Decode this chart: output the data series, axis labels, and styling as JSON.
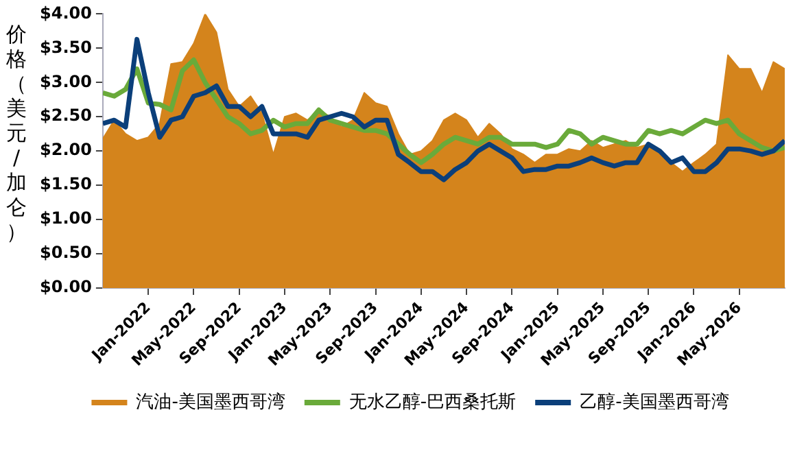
{
  "chart_data": {
    "type": "line",
    "ylabel": "价格（美元/加仑）",
    "x": [
      "2021-09",
      "2021-10",
      "2021-11",
      "2021-12",
      "2022-01",
      "2022-02",
      "2022-03",
      "2022-04",
      "2022-05",
      "2022-06",
      "2022-07",
      "2022-08",
      "2022-09",
      "2022-10",
      "2022-11",
      "2022-12",
      "2023-01",
      "2023-02",
      "2023-03",
      "2023-04",
      "2023-05",
      "2023-06",
      "2023-07",
      "2023-08",
      "2023-09",
      "2023-10",
      "2023-11",
      "2023-12",
      "2024-01",
      "2024-02",
      "2024-03",
      "2024-04",
      "2024-05",
      "2024-06",
      "2024-07",
      "2024-08",
      "2024-09",
      "2024-10",
      "2024-11",
      "2024-12",
      "2025-01",
      "2025-02",
      "2025-03",
      "2025-04",
      "2025-05",
      "2025-06",
      "2025-07",
      "2025-08",
      "2025-09",
      "2025-10",
      "2025-11",
      "2025-12",
      "2026-01",
      "2026-02",
      "2026-03",
      "2026-04",
      "2026-05",
      "2026-06",
      "2026-07",
      "2026-08",
      "2026-09"
    ],
    "series": [
      {
        "name": "汽油-美国墨西哥湾",
        "type": "area",
        "color": "#d4841c",
        "values": [
          2.18,
          2.45,
          2.25,
          2.15,
          2.2,
          2.4,
          3.27,
          3.3,
          3.57,
          4.0,
          3.73,
          2.9,
          2.65,
          2.8,
          2.55,
          1.95,
          2.5,
          2.55,
          2.45,
          2.6,
          2.5,
          2.35,
          2.45,
          2.85,
          2.7,
          2.65,
          2.25,
          1.95,
          2.0,
          2.15,
          2.45,
          2.55,
          2.45,
          2.2,
          2.4,
          2.25,
          2.03,
          1.95,
          1.83,
          1.95,
          1.95,
          2.03,
          2.0,
          2.15,
          2.05,
          2.1,
          2.15,
          2.05,
          2.1,
          1.95,
          1.83,
          1.7,
          1.83,
          1.95,
          2.1,
          3.4,
          3.2,
          3.2,
          2.85,
          3.3,
          3.2
        ]
      },
      {
        "name": "无水乙醇-巴西桑托斯",
        "type": "line",
        "color": "#6aaa3a",
        "values": [
          2.85,
          2.8,
          2.9,
          3.2,
          2.7,
          2.68,
          2.6,
          3.17,
          3.33,
          3.0,
          2.75,
          2.5,
          2.4,
          2.25,
          2.3,
          2.45,
          2.35,
          2.4,
          2.4,
          2.6,
          2.45,
          2.4,
          2.35,
          2.3,
          2.3,
          2.25,
          2.1,
          1.95,
          1.83,
          1.95,
          2.1,
          2.2,
          2.15,
          2.1,
          2.2,
          2.2,
          2.1,
          2.1,
          2.1,
          2.05,
          2.1,
          2.3,
          2.25,
          2.1,
          2.2,
          2.15,
          2.1,
          2.1,
          2.3,
          2.25,
          2.3,
          2.25,
          2.35,
          2.45,
          2.4,
          2.45,
          2.25,
          2.15,
          2.05,
          2.0,
          2.05
        ]
      },
      {
        "name": "乙醇-美国墨西哥湾",
        "type": "line",
        "color": "#0b3f7a",
        "values": [
          2.4,
          2.45,
          2.35,
          3.63,
          2.85,
          2.2,
          2.45,
          2.5,
          2.8,
          2.85,
          2.95,
          2.65,
          2.65,
          2.5,
          2.65,
          2.25,
          2.25,
          2.25,
          2.2,
          2.45,
          2.5,
          2.55,
          2.5,
          2.35,
          2.45,
          2.45,
          1.95,
          1.83,
          1.7,
          1.7,
          1.58,
          1.73,
          1.83,
          2.0,
          2.1,
          2.0,
          1.9,
          1.7,
          1.73,
          1.73,
          1.78,
          1.78,
          1.83,
          1.9,
          1.83,
          1.78,
          1.83,
          1.83,
          2.1,
          2.0,
          1.83,
          1.9,
          1.7,
          1.7,
          1.83,
          2.03,
          2.03,
          2.0,
          1.95,
          2.0,
          2.15
        ]
      }
    ],
    "xlim": [
      "2021-09",
      "2026-09"
    ],
    "xticks": [
      {
        "value": "2022-01",
        "label": "Jan-2022"
      },
      {
        "value": "2022-05",
        "label": "May-2022"
      },
      {
        "value": "2022-09",
        "label": "Sep-2022"
      },
      {
        "value": "2023-01",
        "label": "Jan-2023"
      },
      {
        "value": "2023-05",
        "label": "May-2023"
      },
      {
        "value": "2023-09",
        "label": "Sep-2023"
      },
      {
        "value": "2024-01",
        "label": "Jan-2024"
      },
      {
        "value": "2024-05",
        "label": "May-2024"
      },
      {
        "value": "2024-09",
        "label": "Sep-2024"
      },
      {
        "value": "2025-01",
        "label": "Jan-2025"
      },
      {
        "value": "2025-05",
        "label": "May-2025"
      },
      {
        "value": "2025-09",
        "label": "Sep-2025"
      },
      {
        "value": "2026-01",
        "label": "Jan-2026"
      },
      {
        "value": "2026-05",
        "label": "May-2026"
      }
    ],
    "ylim": [
      0,
      4
    ],
    "yticks": [
      {
        "value": 0,
        "label": "$0.00"
      },
      {
        "value": 0.5,
        "label": "$0.50"
      },
      {
        "value": 1,
        "label": "$1.00"
      },
      {
        "value": 1.5,
        "label": "$1.50"
      },
      {
        "value": 2,
        "label": "$2.00"
      },
      {
        "value": 2.5,
        "label": "$2.50"
      },
      {
        "value": 3,
        "label": "$3.00"
      },
      {
        "value": 3.5,
        "label": "$3.50"
      },
      {
        "value": 4,
        "label": "$4.00"
      }
    ],
    "grid": false,
    "legend": "bottom",
    "marker": "none",
    "line_style": "solid"
  }
}
